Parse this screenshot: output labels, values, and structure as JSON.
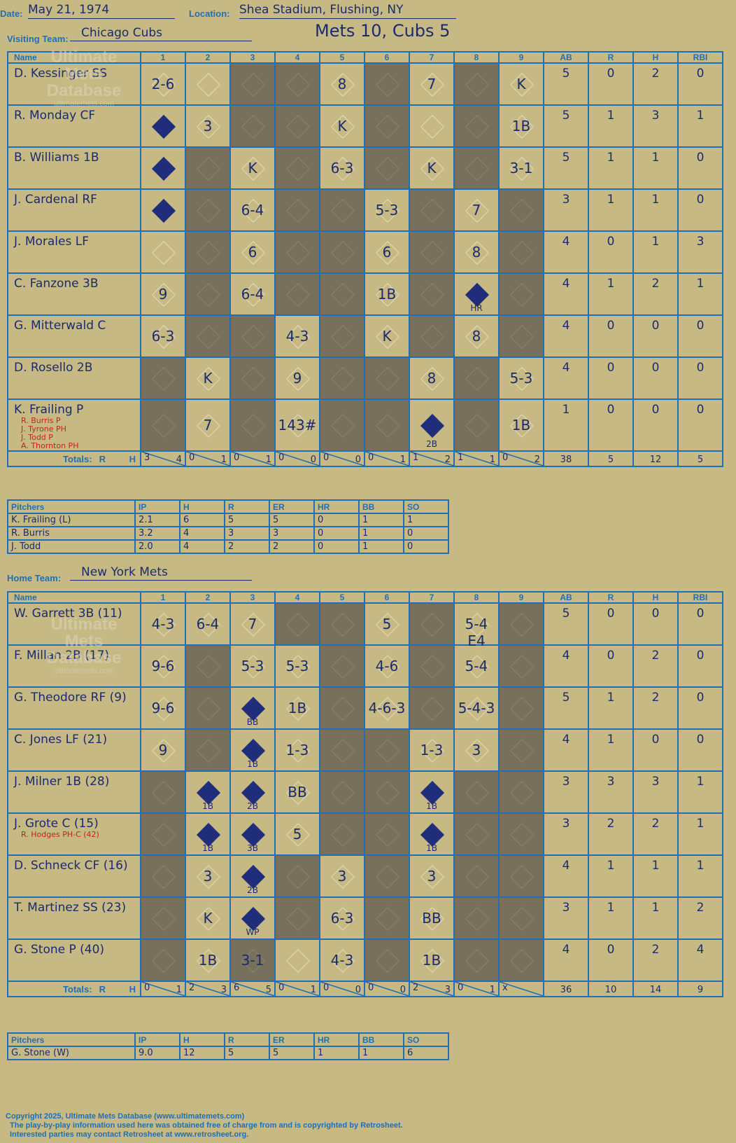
{
  "header": {
    "date_label": "Date:",
    "date": "May 21, 1974",
    "location_label": "Location:",
    "location": "Shea Stadium, Flushing, NY",
    "title": "Mets 10, Cubs 5"
  },
  "visitors": {
    "label": "Visiting Team:",
    "team": "Chicago Cubs",
    "col_name": "Name",
    "innings": [
      "1",
      "2",
      "3",
      "4",
      "5",
      "6",
      "7",
      "8",
      "9"
    ],
    "stat_headers": [
      "AB",
      "R",
      "H",
      "RBI"
    ],
    "players": [
      {
        "name": "D. Kessinger SS",
        "subs": [],
        "stats": [
          "5",
          "0",
          "2",
          "0"
        ]
      },
      {
        "name": "R. Monday CF",
        "subs": [],
        "stats": [
          "5",
          "1",
          "3",
          "1"
        ]
      },
      {
        "name": "B. Williams 1B",
        "subs": [],
        "stats": [
          "5",
          "1",
          "1",
          "0"
        ]
      },
      {
        "name": "J. Cardenal RF",
        "subs": [],
        "stats": [
          "3",
          "1",
          "1",
          "0"
        ]
      },
      {
        "name": "J. Morales LF",
        "subs": [],
        "stats": [
          "4",
          "0",
          "1",
          "3"
        ]
      },
      {
        "name": "C. Fanzone 3B",
        "subs": [],
        "stats": [
          "4",
          "1",
          "2",
          "1"
        ]
      },
      {
        "name": "G. Mitterwald C",
        "subs": [],
        "stats": [
          "4",
          "0",
          "0",
          "0"
        ]
      },
      {
        "name": "D. Rosello 2B",
        "subs": [],
        "stats": [
          "4",
          "0",
          "0",
          "0"
        ]
      },
      {
        "name": "K. Frailing P",
        "subs": [
          "R. Burris P",
          "J. Tyrone PH",
          "J. Todd P",
          "A. Thornton PH"
        ],
        "stats": [
          "1",
          "0",
          "0",
          "0"
        ]
      }
    ],
    "totals_label": "Totals:",
    "totals_rh": [
      "R",
      "H"
    ],
    "inning_totals": [
      [
        "3",
        "4"
      ],
      [
        "0",
        "1"
      ],
      [
        "0",
        "1"
      ],
      [
        "0",
        "0"
      ],
      [
        "0",
        "0"
      ],
      [
        "0",
        "1"
      ],
      [
        "1",
        "2"
      ],
      [
        "1",
        "1"
      ],
      [
        "0",
        "2"
      ]
    ],
    "stat_totals": [
      "38",
      "5",
      "12",
      "5"
    ]
  },
  "visitor_pitchers": {
    "headers": [
      "Pitchers",
      "IP",
      "H",
      "R",
      "ER",
      "HR",
      "BB",
      "SO"
    ],
    "rows": [
      [
        "K. Frailing (L)",
        "2.1",
        "6",
        "5",
        "5",
        "0",
        "1",
        "1"
      ],
      [
        "R. Burris",
        "3.2",
        "4",
        "3",
        "3",
        "0",
        "1",
        "0"
      ],
      [
        "J. Todd",
        "2.0",
        "4",
        "2",
        "2",
        "0",
        "1",
        "0"
      ]
    ]
  },
  "home": {
    "label": "Home Team:",
    "team": "New York Mets",
    "col_name": "Name",
    "innings": [
      "1",
      "2",
      "3",
      "4",
      "5",
      "6",
      "7",
      "8",
      "9"
    ],
    "stat_headers": [
      "AB",
      "R",
      "H",
      "RBI"
    ],
    "players": [
      {
        "name": "W. Garrett 3B (11)",
        "subs": [],
        "stats": [
          "5",
          "0",
          "0",
          "0"
        ]
      },
      {
        "name": "F. Millan 2B (17)",
        "subs": [],
        "stats": [
          "4",
          "0",
          "2",
          "0"
        ]
      },
      {
        "name": "G. Theodore RF (9)",
        "subs": [],
        "stats": [
          "5",
          "1",
          "2",
          "0"
        ]
      },
      {
        "name": "C. Jones LF (21)",
        "subs": [],
        "stats": [
          "4",
          "1",
          "0",
          "0"
        ]
      },
      {
        "name": "J. Milner 1B (28)",
        "subs": [],
        "stats": [
          "3",
          "3",
          "3",
          "1"
        ]
      },
      {
        "name": "J. Grote C (15)",
        "subs": [
          "R. Hodges PH-C (42)"
        ],
        "stats": [
          "3",
          "2",
          "2",
          "1"
        ]
      },
      {
        "name": "D. Schneck CF (16)",
        "subs": [],
        "stats": [
          "4",
          "1",
          "1",
          "1"
        ]
      },
      {
        "name": "T. Martinez SS (23)",
        "subs": [],
        "stats": [
          "3",
          "1",
          "1",
          "2"
        ]
      },
      {
        "name": "G. Stone P (40)",
        "subs": [],
        "stats": [
          "4",
          "0",
          "2",
          "4"
        ]
      }
    ],
    "totals_label": "Totals:",
    "totals_rh": [
      "R",
      "H"
    ],
    "inning_totals": [
      [
        "0",
        "1"
      ],
      [
        "2",
        "3"
      ],
      [
        "6",
        "5"
      ],
      [
        "0",
        "1"
      ],
      [
        "0",
        "0"
      ],
      [
        "0",
        "0"
      ],
      [
        "2",
        "3"
      ],
      [
        "0",
        "1"
      ],
      [
        "x",
        ""
      ]
    ],
    "stat_totals": [
      "36",
      "10",
      "14",
      "9"
    ]
  },
  "home_pitchers": {
    "headers": [
      "Pitchers",
      "IP",
      "H",
      "R",
      "ER",
      "HR",
      "BB",
      "SO"
    ],
    "rows": [
      [
        "G. Stone (W)",
        "9.0",
        "12",
        "5",
        "5",
        "1",
        "1",
        "6"
      ]
    ]
  },
  "watermark": {
    "line1": "Ultimate",
    "line2": "Mets",
    "line3": "Database",
    "line4": "ultimatemets.com"
  },
  "footer": {
    "line1": "Copyright 2025, Ultimate Mets Database (www.ultimatemets.com)",
    "line2": "The play-by-play information used here was obtained free of charge from and is copyrighted by Retrosheet.",
    "line3": "Interested parties may contact Retrosheet at www.retrosheet.org."
  },
  "visitor_cells": [
    [
      "2-6",
      "",
      "",
      "",
      "8",
      "",
      "7",
      "",
      "K"
    ],
    [
      "",
      "3",
      "",
      "",
      "K",
      "",
      "",
      "",
      "1B"
    ],
    [
      "",
      "",
      "K",
      "",
      "6-3",
      "",
      "K",
      "",
      "3-1"
    ],
    [
      "",
      "",
      "6-4",
      "",
      "",
      "5-3",
      "",
      "7",
      ""
    ],
    [
      "",
      "",
      "6",
      "",
      "",
      "6",
      "",
      "8",
      ""
    ],
    [
      "9",
      "",
      "6-4",
      "",
      "",
      "1B",
      "",
      "HR",
      ""
    ],
    [
      "6-3",
      "",
      "",
      "4-3",
      "",
      "K",
      "",
      "8",
      ""
    ],
    [
      "",
      "K",
      "",
      "9",
      "",
      "",
      "8",
      "",
      "5-3"
    ],
    [
      "",
      "7",
      "",
      "143#",
      "",
      "",
      "2B",
      "",
      "1B"
    ]
  ],
  "home_cells": [
    [
      "4-3",
      "6-4",
      "7",
      "",
      "",
      "5",
      "",
      "5-4 E4",
      ""
    ],
    [
      "9-6",
      "",
      "5-3",
      "5-3",
      "",
      "4-6",
      "",
      "5-4",
      ""
    ],
    [
      "9-6",
      "",
      "BB",
      "1B",
      "",
      "4-6-3",
      "",
      "5-4-3",
      ""
    ],
    [
      "9",
      "",
      "1B",
      "1-3",
      "",
      "",
      "1-3",
      "3",
      ""
    ],
    [
      "",
      "1B",
      "2B",
      "BB",
      "",
      "",
      "1B",
      "",
      ""
    ],
    [
      "",
      "1B",
      "3B",
      "5",
      "",
      "",
      "1B",
      "",
      ""
    ],
    [
      "",
      "3",
      "2B",
      "",
      "3",
      "",
      "3",
      "",
      ""
    ],
    [
      "",
      "K",
      "WP",
      "",
      "6-3",
      "",
      "BB",
      "",
      ""
    ],
    [
      "",
      "1B",
      "3-1",
      "",
      "4-3",
      "",
      "1B",
      "",
      ""
    ]
  ]
}
